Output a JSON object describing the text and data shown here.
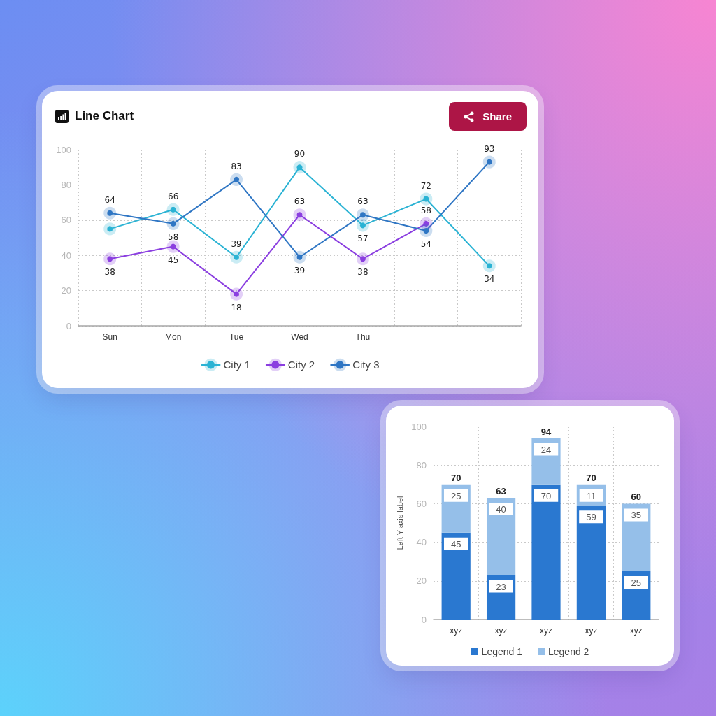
{
  "chart_data": [
    {
      "type": "line",
      "title": "Line Chart",
      "annotations": [
        "Share"
      ],
      "categories": [
        "Sun",
        "Mon",
        "Tue",
        "Wed",
        "Thu",
        null,
        null
      ],
      "series": [
        {
          "name": "City 1",
          "color": "#2bb3d4",
          "values": [
            55,
            66,
            39,
            90,
            57,
            72,
            34
          ],
          "value_labels": [
            null,
            "66",
            "39",
            "90",
            "57",
            "72",
            "34"
          ]
        },
        {
          "name": "City 2",
          "color": "#8b3fe0",
          "values": [
            38,
            45,
            18,
            63,
            38,
            58,
            null
          ],
          "value_labels": [
            "38",
            "45",
            "18",
            "63",
            "38",
            "58",
            null
          ]
        },
        {
          "name": "City 3",
          "color": "#2f76c4",
          "values": [
            64,
            58,
            83,
            39,
            63,
            54,
            93
          ],
          "value_labels": [
            "64",
            "58",
            "83",
            "39",
            "63",
            "54",
            "93"
          ]
        }
      ],
      "ylim": [
        0,
        100
      ],
      "yticks": [
        0,
        20,
        40,
        60,
        80,
        100
      ],
      "grid": true,
      "legend": "bottom",
      "marker": "circle",
      "line_style": "solid"
    },
    {
      "type": "bar",
      "stacked": true,
      "ylabel": "Left Y-axis label",
      "categories": [
        "xyz",
        "xyz",
        "xyz",
        "xyz",
        "xyz"
      ],
      "series": [
        {
          "name": "Legend 1",
          "color": "#2a78d0",
          "values": [
            45,
            23,
            70,
            59,
            25
          ]
        },
        {
          "name": "Legend 2",
          "color": "#95bfe9",
          "values": [
            25,
            40,
            24,
            11,
            35
          ]
        }
      ],
      "totals": [
        "70",
        "63",
        "94",
        "70",
        "60"
      ],
      "data_labels": true,
      "ylim": [
        0,
        100
      ],
      "yticks": [
        0,
        20,
        40,
        60,
        80,
        100
      ],
      "grid": true,
      "legend": "bottom"
    }
  ]
}
